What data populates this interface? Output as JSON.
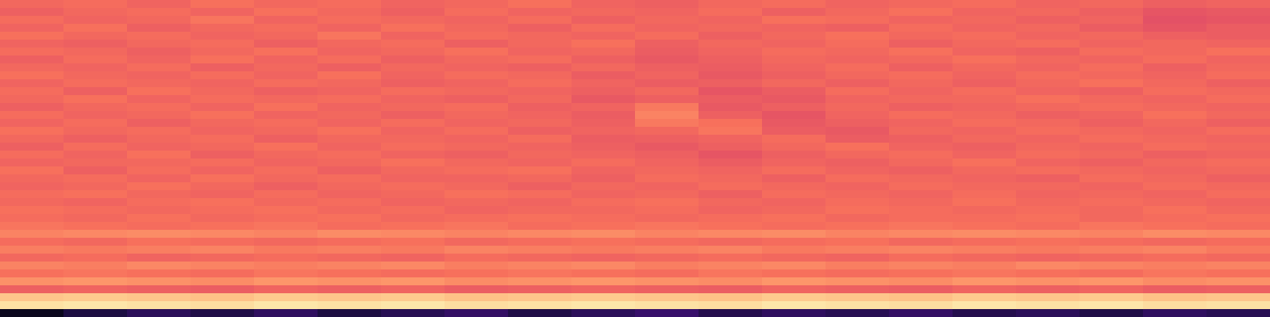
{
  "chart_data": {
    "type": "heatmap",
    "tick_labels": false,
    "zlim": [
      0,
      1
    ],
    "z": [
      [
        0.68,
        0.69,
        0.67,
        0.7,
        0.68,
        0.69,
        0.67,
        0.68,
        0.7,
        0.67,
        0.66,
        0.68,
        0.69,
        0.67,
        0.68,
        0.69,
        0.67,
        0.68,
        0.66,
        0.67
      ],
      [
        0.66,
        0.68,
        0.69,
        0.67,
        0.7,
        0.68,
        0.66,
        0.69,
        0.67,
        0.68,
        0.67,
        0.69,
        0.66,
        0.68,
        0.7,
        0.67,
        0.68,
        0.66,
        0.63,
        0.64
      ],
      [
        0.69,
        0.67,
        0.68,
        0.71,
        0.67,
        0.69,
        0.68,
        0.67,
        0.69,
        0.66,
        0.68,
        0.67,
        0.7,
        0.69,
        0.67,
        0.68,
        0.66,
        0.67,
        0.62,
        0.63
      ],
      [
        0.67,
        0.7,
        0.66,
        0.68,
        0.69,
        0.67,
        0.7,
        0.68,
        0.66,
        0.69,
        0.67,
        0.68,
        0.67,
        0.66,
        0.69,
        0.67,
        0.68,
        0.65,
        0.63,
        0.65
      ],
      [
        0.7,
        0.68,
        0.69,
        0.67,
        0.68,
        0.71,
        0.67,
        0.69,
        0.68,
        0.67,
        0.69,
        0.66,
        0.68,
        0.7,
        0.68,
        0.69,
        0.67,
        0.68,
        0.66,
        0.65
      ],
      [
        0.67,
        0.66,
        0.68,
        0.69,
        0.66,
        0.68,
        0.69,
        0.66,
        0.68,
        0.7,
        0.66,
        0.68,
        0.67,
        0.69,
        0.66,
        0.68,
        0.69,
        0.67,
        0.68,
        0.67
      ],
      [
        0.69,
        0.68,
        0.66,
        0.68,
        0.7,
        0.67,
        0.68,
        0.7,
        0.67,
        0.68,
        0.65,
        0.67,
        0.69,
        0.68,
        0.7,
        0.67,
        0.66,
        0.69,
        0.68,
        0.7
      ],
      [
        0.66,
        0.69,
        0.67,
        0.7,
        0.67,
        0.69,
        0.66,
        0.68,
        0.69,
        0.66,
        0.64,
        0.66,
        0.68,
        0.67,
        0.68,
        0.7,
        0.68,
        0.67,
        0.69,
        0.67
      ],
      [
        0.68,
        0.67,
        0.69,
        0.66,
        0.68,
        0.66,
        0.68,
        0.67,
        0.66,
        0.68,
        0.66,
        0.65,
        0.67,
        0.69,
        0.66,
        0.68,
        0.67,
        0.69,
        0.66,
        0.68
      ],
      [
        0.7,
        0.68,
        0.67,
        0.69,
        0.67,
        0.7,
        0.67,
        0.69,
        0.68,
        0.65,
        0.67,
        0.64,
        0.66,
        0.68,
        0.69,
        0.67,
        0.69,
        0.68,
        0.67,
        0.69
      ],
      [
        0.67,
        0.69,
        0.68,
        0.67,
        0.69,
        0.68,
        0.66,
        0.67,
        0.69,
        0.67,
        0.65,
        0.66,
        0.68,
        0.66,
        0.68,
        0.66,
        0.68,
        0.7,
        0.68,
        0.66
      ],
      [
        0.69,
        0.66,
        0.7,
        0.68,
        0.66,
        0.67,
        0.69,
        0.68,
        0.67,
        0.66,
        0.68,
        0.63,
        0.65,
        0.69,
        0.67,
        0.69,
        0.67,
        0.66,
        0.69,
        0.68
      ],
      [
        0.68,
        0.7,
        0.67,
        0.69,
        0.68,
        0.69,
        0.67,
        0.66,
        0.68,
        0.64,
        0.66,
        0.65,
        0.64,
        0.67,
        0.68,
        0.68,
        0.7,
        0.68,
        0.67,
        0.69
      ],
      [
        0.66,
        0.68,
        0.69,
        0.67,
        0.7,
        0.67,
        0.68,
        0.69,
        0.66,
        0.67,
        0.72,
        0.64,
        0.66,
        0.68,
        0.66,
        0.67,
        0.68,
        0.69,
        0.68,
        0.67
      ],
      [
        0.69,
        0.67,
        0.68,
        0.7,
        0.67,
        0.68,
        0.66,
        0.68,
        0.67,
        0.65,
        0.74,
        0.66,
        0.63,
        0.67,
        0.69,
        0.68,
        0.66,
        0.67,
        0.7,
        0.68
      ],
      [
        0.67,
        0.69,
        0.66,
        0.68,
        0.69,
        0.67,
        0.69,
        0.67,
        0.68,
        0.66,
        0.72,
        0.7,
        0.64,
        0.66,
        0.67,
        0.69,
        0.68,
        0.66,
        0.68,
        0.66
      ],
      [
        0.7,
        0.68,
        0.69,
        0.67,
        0.68,
        0.7,
        0.67,
        0.69,
        0.66,
        0.67,
        0.68,
        0.71,
        0.65,
        0.64,
        0.68,
        0.67,
        0.69,
        0.68,
        0.67,
        0.69
      ],
      [
        0.68,
        0.66,
        0.68,
        0.69,
        0.66,
        0.68,
        0.68,
        0.67,
        0.69,
        0.65,
        0.66,
        0.67,
        0.69,
        0.65,
        0.66,
        0.68,
        0.67,
        0.69,
        0.68,
        0.67
      ],
      [
        0.66,
        0.69,
        0.67,
        0.68,
        0.7,
        0.67,
        0.69,
        0.68,
        0.67,
        0.66,
        0.64,
        0.66,
        0.68,
        0.7,
        0.67,
        0.66,
        0.68,
        0.67,
        0.69,
        0.68
      ],
      [
        0.69,
        0.67,
        0.7,
        0.66,
        0.68,
        0.69,
        0.67,
        0.66,
        0.68,
        0.67,
        0.66,
        0.63,
        0.66,
        0.68,
        0.69,
        0.67,
        0.69,
        0.68,
        0.66,
        0.67
      ],
      [
        0.67,
        0.68,
        0.68,
        0.69,
        0.67,
        0.68,
        0.7,
        0.68,
        0.67,
        0.69,
        0.67,
        0.65,
        0.67,
        0.66,
        0.68,
        0.7,
        0.67,
        0.66,
        0.68,
        0.69
      ],
      [
        0.7,
        0.66,
        0.69,
        0.67,
        0.69,
        0.66,
        0.68,
        0.69,
        0.7,
        0.67,
        0.68,
        0.67,
        0.69,
        0.67,
        0.66,
        0.68,
        0.69,
        0.68,
        0.67,
        0.68
      ],
      [
        0.68,
        0.69,
        0.67,
        0.7,
        0.68,
        0.69,
        0.67,
        0.67,
        0.68,
        0.66,
        0.69,
        0.68,
        0.66,
        0.69,
        0.68,
        0.67,
        0.66,
        0.69,
        0.68,
        0.66
      ],
      [
        0.67,
        0.68,
        0.7,
        0.68,
        0.66,
        0.68,
        0.69,
        0.68,
        0.66,
        0.68,
        0.67,
        0.69,
        0.68,
        0.67,
        0.69,
        0.68,
        0.68,
        0.67,
        0.69,
        0.68
      ],
      [
        0.69,
        0.7,
        0.68,
        0.67,
        0.69,
        0.67,
        0.68,
        0.7,
        0.69,
        0.67,
        0.68,
        0.66,
        0.69,
        0.68,
        0.67,
        0.69,
        0.67,
        0.68,
        0.67,
        0.69
      ],
      [
        0.68,
        0.67,
        0.69,
        0.7,
        0.68,
        0.69,
        0.67,
        0.68,
        0.67,
        0.69,
        0.7,
        0.68,
        0.67,
        0.69,
        0.68,
        0.7,
        0.68,
        0.69,
        0.68,
        0.67
      ],
      [
        0.7,
        0.69,
        0.68,
        0.69,
        0.7,
        0.68,
        0.69,
        0.67,
        0.68,
        0.68,
        0.69,
        0.67,
        0.68,
        0.7,
        0.69,
        0.68,
        0.69,
        0.68,
        0.7,
        0.68
      ],
      [
        0.69,
        0.68,
        0.7,
        0.68,
        0.69,
        0.7,
        0.68,
        0.69,
        0.7,
        0.69,
        0.68,
        0.69,
        0.7,
        0.68,
        0.69,
        0.69,
        0.7,
        0.68,
        0.69,
        0.7
      ],
      [
        0.71,
        0.7,
        0.69,
        0.7,
        0.71,
        0.69,
        0.7,
        0.71,
        0.69,
        0.7,
        0.71,
        0.7,
        0.69,
        0.7,
        0.71,
        0.7,
        0.69,
        0.71,
        0.7,
        0.69
      ],
      [
        0.74,
        0.75,
        0.76,
        0.75,
        0.74,
        0.76,
        0.75,
        0.74,
        0.75,
        0.76,
        0.74,
        0.75,
        0.76,
        0.74,
        0.75,
        0.76,
        0.75,
        0.74,
        0.76,
        0.75
      ],
      [
        0.69,
        0.68,
        0.7,
        0.69,
        0.68,
        0.69,
        0.7,
        0.68,
        0.69,
        0.7,
        0.69,
        0.68,
        0.69,
        0.7,
        0.68,
        0.69,
        0.7,
        0.69,
        0.68,
        0.69
      ],
      [
        0.73,
        0.72,
        0.73,
        0.74,
        0.72,
        0.73,
        0.72,
        0.74,
        0.73,
        0.72,
        0.73,
        0.74,
        0.72,
        0.73,
        0.74,
        0.73,
        0.72,
        0.73,
        0.74,
        0.72
      ],
      [
        0.68,
        0.69,
        0.67,
        0.68,
        0.69,
        0.68,
        0.67,
        0.69,
        0.68,
        0.67,
        0.68,
        0.69,
        0.68,
        0.67,
        0.69,
        0.68,
        0.67,
        0.68,
        0.69,
        0.68
      ],
      [
        0.74,
        0.73,
        0.75,
        0.74,
        0.73,
        0.74,
        0.75,
        0.73,
        0.74,
        0.75,
        0.73,
        0.74,
        0.75,
        0.73,
        0.74,
        0.73,
        0.75,
        0.74,
        0.73,
        0.74
      ],
      [
        0.7,
        0.71,
        0.7,
        0.69,
        0.71,
        0.7,
        0.69,
        0.7,
        0.71,
        0.7,
        0.69,
        0.71,
        0.7,
        0.69,
        0.7,
        0.71,
        0.7,
        0.69,
        0.71,
        0.7
      ],
      [
        0.77,
        0.78,
        0.77,
        0.76,
        0.78,
        0.77,
        0.78,
        0.76,
        0.77,
        0.78,
        0.77,
        0.76,
        0.78,
        0.77,
        0.76,
        0.78,
        0.77,
        0.78,
        0.76,
        0.77
      ],
      [
        0.66,
        0.67,
        0.66,
        0.65,
        0.67,
        0.66,
        0.67,
        0.65,
        0.66,
        0.67,
        0.66,
        0.65,
        0.67,
        0.66,
        0.65,
        0.67,
        0.66,
        0.67,
        0.65,
        0.66
      ],
      [
        0.88,
        0.89,
        0.88,
        0.87,
        0.89,
        0.88,
        0.89,
        0.87,
        0.88,
        0.89,
        0.88,
        0.87,
        0.89,
        0.88,
        0.87,
        0.89,
        0.88,
        0.89,
        0.87,
        0.88
      ],
      [
        0.94,
        0.95,
        0.94,
        0.93,
        0.95,
        0.94,
        0.95,
        0.93,
        0.94,
        0.95,
        0.94,
        0.93,
        0.95,
        0.94,
        0.93,
        0.95,
        0.94,
        0.95,
        0.93,
        0.94
      ],
      [
        0.05,
        0.12,
        0.16,
        0.13,
        0.17,
        0.12,
        0.15,
        0.18,
        0.13,
        0.16,
        0.19,
        0.14,
        0.17,
        0.15,
        0.18,
        0.14,
        0.16,
        0.13,
        0.17,
        0.15
      ]
    ]
  }
}
